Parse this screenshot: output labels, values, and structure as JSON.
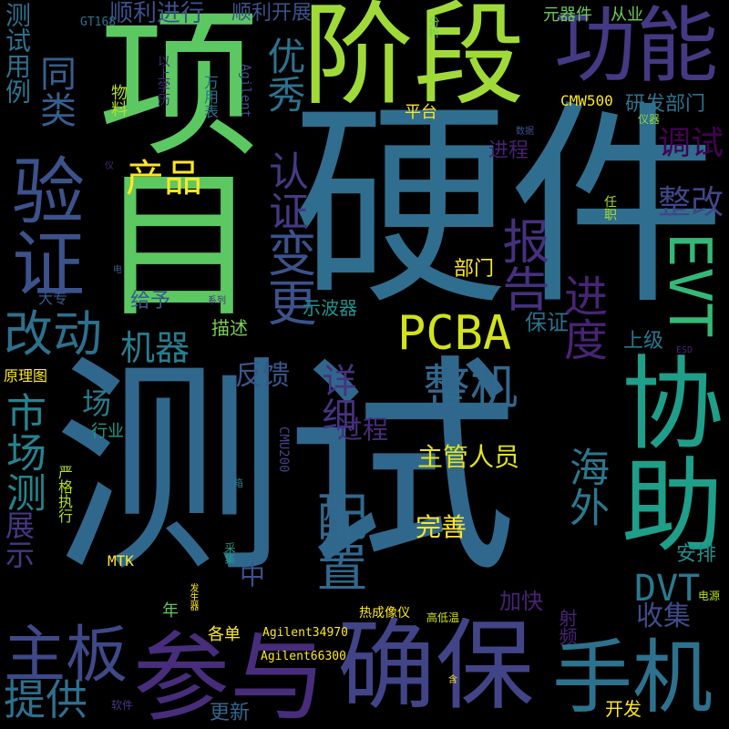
{
  "words": [
    {
      "text": "测试",
      "color": "#30678d"
    },
    {
      "text": "硬件",
      "color": "#2f6e8e"
    },
    {
      "text": "项目",
      "color": "#5cc862"
    },
    {
      "text": "阶段",
      "color": "#a0da39"
    },
    {
      "text": "协助",
      "color": "#1f9e89"
    },
    {
      "text": "确保",
      "color": "#414487"
    },
    {
      "text": "参与",
      "color": "#472d7b"
    },
    {
      "text": "功能",
      "color": "#443983"
    },
    {
      "text": "验证",
      "color": "#3b528b"
    },
    {
      "text": "手机",
      "color": "#2c728e"
    },
    {
      "text": "主板",
      "color": "#3e4989"
    },
    {
      "text": "PCBA",
      "color": "#d2e21b"
    },
    {
      "text": "EVT",
      "color": "#35b779"
    },
    {
      "text": "配置",
      "color": "#31688e"
    },
    {
      "text": "变更",
      "color": "#3b528b"
    },
    {
      "text": "认证",
      "color": "#443a83"
    },
    {
      "text": "报告",
      "color": "#46307e"
    },
    {
      "text": "优秀",
      "color": "#2c728e"
    },
    {
      "text": "同类",
      "color": "#355f8d"
    },
    {
      "text": "改动",
      "color": "#2d708e"
    },
    {
      "text": "产品",
      "color": "#fde725"
    },
    {
      "text": "进度",
      "color": "#482475"
    },
    {
      "text": "整机",
      "color": "#31688e"
    },
    {
      "text": "海外",
      "color": "#2a788e"
    },
    {
      "text": "机器",
      "color": "#287c8e"
    },
    {
      "text": "详细",
      "color": "#46337f"
    },
    {
      "text": "市场测",
      "color": "#25838e"
    },
    {
      "text": "展示",
      "color": "#453781"
    },
    {
      "text": "测试用例",
      "color": "#2c728e"
    },
    {
      "text": "提供",
      "color": "#2e6f8e"
    },
    {
      "text": "DVT",
      "color": "#2a788e"
    },
    {
      "text": "调试",
      "color": "#440154"
    },
    {
      "text": "整改",
      "color": "#404688"
    },
    {
      "text": "收集",
      "color": "#3e4c8a"
    },
    {
      "text": "反馈",
      "color": "#39568c"
    },
    {
      "text": "过程",
      "color": "#472c7a"
    },
    {
      "text": "主管人员",
      "color": "#e5e419"
    },
    {
      "text": "完善",
      "color": "#fde725"
    },
    {
      "text": "加快",
      "color": "#482374"
    },
    {
      "text": "顺利进行",
      "color": "#3b528b"
    },
    {
      "text": "顺利开展",
      "color": "#3b528b"
    },
    {
      "text": "研发部门",
      "color": "#2c728e"
    },
    {
      "text": "保证",
      "color": "#2d708e"
    },
    {
      "text": "上级",
      "color": "#2a788e"
    },
    {
      "text": "部门",
      "color": "#fde725"
    },
    {
      "text": "示波器",
      "color": "#20928c"
    },
    {
      "text": "给予",
      "color": "#365c8d"
    },
    {
      "text": "描述",
      "color": "#7ad151"
    },
    {
      "text": "安排",
      "color": "#218f8d"
    },
    {
      "text": "更新",
      "color": "#32658e"
    },
    {
      "text": "开发",
      "color": "#fde725"
    },
    {
      "text": "进程",
      "color": "#482071"
    },
    {
      "text": "场",
      "color": "#287d8e"
    },
    {
      "text": "元器件",
      "color": "#6ece58"
    },
    {
      "text": "从业",
      "color": "#6ece58"
    },
    {
      "text": "平台",
      "color": "#fde725"
    },
    {
      "text": "CMW500",
      "color": "#fde725"
    },
    {
      "text": "行业",
      "color": "#1e9c89"
    },
    {
      "text": "原理图",
      "color": "#fde725"
    },
    {
      "text": "严格执行",
      "color": "#b2dd2d"
    },
    {
      "text": "各单",
      "color": "#fde725"
    },
    {
      "text": "中",
      "color": "#3b528b"
    },
    {
      "text": "年",
      "color": "#5dc863"
    },
    {
      "text": "射频",
      "color": "#482475"
    },
    {
      "text": "MTK",
      "color": "#fde725"
    },
    {
      "text": "大专",
      "color": "#38598c"
    },
    {
      "text": "物料",
      "color": "#b5de2b"
    },
    {
      "text": "以上学历",
      "color": "#482878"
    },
    {
      "text": "万用表",
      "color": "#2c728e"
    },
    {
      "text": "Agilent",
      "color": "#3e4c8a"
    },
    {
      "text": "GT168",
      "color": "#2c728e"
    },
    {
      "text": "分析",
      "color": "#6ece58"
    },
    {
      "text": "CMU200",
      "color": "#414487"
    },
    {
      "text": "Agilent34970",
      "color": "#fde725"
    },
    {
      "text": "Agilent66300",
      "color": "#fde725"
    },
    {
      "text": "热成像仪",
      "color": "#fde725"
    },
    {
      "text": "高低温",
      "color": "#d2e21b"
    },
    {
      "text": "软件",
      "color": "#443983"
    },
    {
      "text": "电源",
      "color": "#b8de29"
    },
    {
      "text": "ESD",
      "color": "#482475"
    },
    {
      "text": "任职",
      "color": "#a5db36"
    },
    {
      "text": "数据",
      "color": "#3b528b"
    },
    {
      "text": "仪器",
      "color": "#90d743"
    },
    {
      "text": "系列",
      "color": "#472d7b"
    },
    {
      "text": "采集",
      "color": "#1f9e89"
    },
    {
      "text": "发生器",
      "color": "#fde725"
    },
    {
      "text": "箱",
      "color": "#2a788e"
    },
    {
      "text": "电",
      "color": "#38598c"
    },
    {
      "text": "仪",
      "color": "#482878"
    },
    {
      "text": "含",
      "color": "#fde725"
    }
  ]
}
